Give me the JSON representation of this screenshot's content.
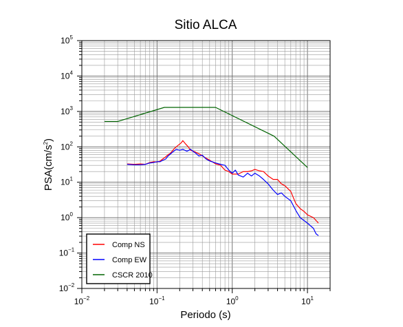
{
  "chart_data": {
    "type": "line",
    "title": "Sitio ALCA",
    "xlabel": "Periodo (s)",
    "ylabel": {
      "prefix": "PSA(cm/s",
      "sup": "2",
      "suffix": ")"
    },
    "xscale": "log",
    "yscale": "log",
    "xlim": [
      0.01,
      20
    ],
    "ylim": [
      0.01,
      100000
    ],
    "grid": true,
    "legend_position": "bottom-left",
    "x_ticks": [
      {
        "base": "10",
        "exp": "−2",
        "value": 0.01
      },
      {
        "base": "10",
        "exp": "−1",
        "value": 0.1
      },
      {
        "base": "10",
        "exp": "0",
        "value": 1
      },
      {
        "base": "10",
        "exp": "1",
        "value": 10
      }
    ],
    "y_ticks": [
      {
        "base": "10",
        "exp": "−2",
        "value": 0.01
      },
      {
        "base": "10",
        "exp": "−1",
        "value": 0.1
      },
      {
        "base": "10",
        "exp": "0",
        "value": 1
      },
      {
        "base": "10",
        "exp": "1",
        "value": 10
      },
      {
        "base": "10",
        "exp": "2",
        "value": 100
      },
      {
        "base": "10",
        "exp": "3",
        "value": 1000
      },
      {
        "base": "10",
        "exp": "4",
        "value": 10000
      },
      {
        "base": "10",
        "exp": "5",
        "value": 100000
      }
    ],
    "series": [
      {
        "name": "Comp NS",
        "color": "#ff0000",
        "points": [
          [
            0.04,
            33
          ],
          [
            0.05,
            32
          ],
          [
            0.06,
            33
          ],
          [
            0.07,
            32
          ],
          [
            0.08,
            36
          ],
          [
            0.09,
            38
          ],
          [
            0.1,
            37
          ],
          [
            0.11,
            40
          ],
          [
            0.12,
            46
          ],
          [
            0.13,
            52
          ],
          [
            0.14,
            60
          ],
          [
            0.15,
            65
          ],
          [
            0.17,
            90
          ],
          [
            0.19,
            110
          ],
          [
            0.21,
            130
          ],
          [
            0.22,
            150
          ],
          [
            0.24,
            120
          ],
          [
            0.26,
            100
          ],
          [
            0.28,
            80
          ],
          [
            0.32,
            72
          ],
          [
            0.38,
            60
          ],
          [
            0.42,
            52
          ],
          [
            0.5,
            42
          ],
          [
            0.6,
            33
          ],
          [
            0.7,
            30
          ],
          [
            0.8,
            22
          ],
          [
            0.9,
            20
          ],
          [
            1.0,
            17
          ],
          [
            1.2,
            17
          ],
          [
            1.4,
            20
          ],
          [
            1.6,
            20
          ],
          [
            1.8,
            21
          ],
          [
            2.0,
            23
          ],
          [
            2.3,
            21
          ],
          [
            2.6,
            20
          ],
          [
            3.0,
            15
          ],
          [
            3.5,
            12
          ],
          [
            4.0,
            12
          ],
          [
            4.5,
            9
          ],
          [
            5.0,
            8
          ],
          [
            6.0,
            5.5
          ],
          [
            7.0,
            2.5
          ],
          [
            8.0,
            1.8
          ],
          [
            9.0,
            1.5
          ],
          [
            10.0,
            1.2
          ],
          [
            12.0,
            1.0
          ],
          [
            14.0,
            0.7
          ]
        ]
      },
      {
        "name": "Comp EW",
        "color": "#0000ff",
        "points": [
          [
            0.04,
            32
          ],
          [
            0.05,
            31
          ],
          [
            0.06,
            31
          ],
          [
            0.07,
            32
          ],
          [
            0.08,
            35
          ],
          [
            0.09,
            36
          ],
          [
            0.1,
            38
          ],
          [
            0.11,
            38
          ],
          [
            0.12,
            42
          ],
          [
            0.13,
            45
          ],
          [
            0.14,
            55
          ],
          [
            0.16,
            70
          ],
          [
            0.18,
            85
          ],
          [
            0.2,
            80
          ],
          [
            0.22,
            85
          ],
          [
            0.25,
            75
          ],
          [
            0.28,
            85
          ],
          [
            0.3,
            75
          ],
          [
            0.33,
            65
          ],
          [
            0.36,
            55
          ],
          [
            0.4,
            58
          ],
          [
            0.45,
            45
          ],
          [
            0.5,
            40
          ],
          [
            0.6,
            35
          ],
          [
            0.7,
            32
          ],
          [
            0.8,
            30
          ],
          [
            0.9,
            22
          ],
          [
            1.0,
            18
          ],
          [
            1.1,
            22
          ],
          [
            1.2,
            16
          ],
          [
            1.4,
            14
          ],
          [
            1.6,
            18
          ],
          [
            1.8,
            15
          ],
          [
            2.0,
            18
          ],
          [
            2.3,
            15
          ],
          [
            2.6,
            12
          ],
          [
            3.0,
            9
          ],
          [
            3.5,
            6
          ],
          [
            4.0,
            4.5
          ],
          [
            4.5,
            5
          ],
          [
            5.0,
            4
          ],
          [
            6.0,
            3
          ],
          [
            7.0,
            1.6
          ],
          [
            8.0,
            1.0
          ],
          [
            10.0,
            0.7
          ],
          [
            12.0,
            0.5
          ],
          [
            13.0,
            0.35
          ],
          [
            14.0,
            0.31
          ]
        ]
      },
      {
        "name": "CSCR 2010",
        "color": "#006400",
        "points": [
          [
            0.02,
            520
          ],
          [
            0.03,
            520
          ],
          [
            0.125,
            1300
          ],
          [
            0.6,
            1300
          ],
          [
            3.6,
            200
          ],
          [
            10.0,
            26
          ]
        ]
      }
    ]
  }
}
